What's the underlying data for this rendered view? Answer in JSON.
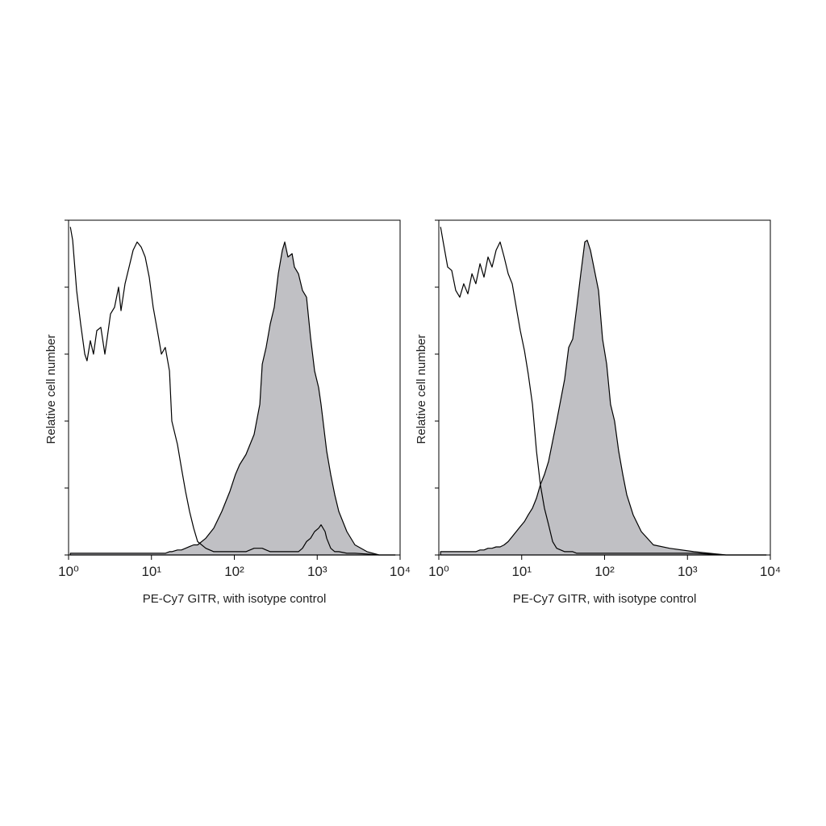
{
  "chart_data": [
    {
      "type": "area",
      "xscale": "log",
      "xlabel": "PE-Cy7 GITR, with isotype control",
      "ylabel": "Relative cell number",
      "xlim": [
        1,
        10000
      ],
      "ylim": [
        0,
        100
      ],
      "xticks": [
        {
          "value": 1,
          "label": "10⁰"
        },
        {
          "value": 10,
          "label": "10¹"
        },
        {
          "value": 100,
          "label": "10²"
        },
        {
          "value": 1000,
          "label": "10³"
        },
        {
          "value": 10000,
          "label": "10⁴"
        }
      ],
      "yticks": [
        0,
        20,
        40,
        60,
        80,
        100
      ],
      "x": [
        1.05,
        1.12,
        1.25,
        1.4,
        1.57,
        1.67,
        1.83,
        2,
        2.19,
        2.45,
        2.74,
        2.93,
        3.21,
        3.59,
        4.01,
        4.29,
        4.8,
        5.37,
        6.01,
        6.72,
        7.51,
        8.41,
        9.4,
        10.5,
        11.8,
        13.2,
        14.7,
        16.5,
        17.6,
        20.6,
        23,
        25.8,
        28.8,
        32.3,
        36.1,
        45.2,
        56.5,
        70.7,
        88.4,
        103,
        116,
        138,
        173,
        203,
        217,
        242,
        271,
        303,
        339,
        379,
        406,
        444,
        497,
        531,
        594,
        664,
        743,
        831,
        929,
        1040,
        1112,
        1245,
        1300,
        1456,
        1629,
        1820,
        2280,
        2851,
        3990,
        5585,
        8750
      ],
      "series": [
        {
          "color": "#000000",
          "fill": "#c0c0c4",
          "values": [
            0.5,
            0.5,
            0.5,
            0.5,
            0.5,
            0.5,
            0.5,
            0.5,
            0.5,
            0.5,
            0.5,
            0.5,
            0.5,
            0.5,
            0.5,
            0.5,
            0.5,
            0.5,
            0.5,
            0.5,
            0.5,
            0.5,
            0.5,
            0.5,
            0.5,
            0.5,
            0.5,
            1,
            1,
            1.5,
            1.5,
            2,
            2.5,
            3,
            3,
            5,
            8,
            13,
            19,
            24,
            27,
            30,
            36,
            45,
            57,
            62,
            69,
            74,
            84,
            91,
            93.5,
            89,
            90,
            86,
            84,
            79,
            77,
            65,
            55,
            50,
            45,
            35,
            31,
            24,
            18,
            13,
            7,
            3,
            1,
            0,
            0
          ]
        },
        {
          "color": "#000000",
          "fill": "none",
          "values": [
            98,
            94,
            79,
            69,
            60,
            58,
            64,
            60,
            67,
            68,
            60,
            65,
            72,
            74,
            80,
            73,
            81,
            86,
            91,
            93.5,
            92,
            89,
            83,
            74,
            67,
            60,
            62,
            55,
            40,
            33,
            26,
            19,
            13,
            8,
            4,
            2,
            1,
            1,
            1,
            1,
            1,
            1,
            2,
            2,
            2,
            1.5,
            1,
            1,
            1,
            1,
            1,
            1,
            1,
            1,
            1,
            2,
            4,
            5,
            7,
            8,
            9,
            7,
            5,
            2,
            1,
            1,
            0.5,
            0.5,
            0.3,
            0,
            0
          ]
        }
      ]
    },
    {
      "type": "area",
      "xscale": "log",
      "xlabel": "PE-Cy7 GITR, with isotype control",
      "ylabel": "Relative cell number",
      "xlim": [
        1,
        10000
      ],
      "ylim": [
        0,
        100
      ],
      "xticks": [
        {
          "value": 1,
          "label": "10⁰"
        },
        {
          "value": 10,
          "label": "10¹"
        },
        {
          "value": 100,
          "label": "10²"
        },
        {
          "value": 1000,
          "label": "10³"
        },
        {
          "value": 10000,
          "label": "10⁴"
        }
      ],
      "yticks": [
        0,
        20,
        40,
        60,
        80,
        100
      ],
      "x": [
        1.05,
        1.14,
        1.28,
        1.43,
        1.6,
        1.79,
        2,
        2.24,
        2.51,
        2.8,
        3.14,
        3.51,
        3.92,
        4.39,
        4.91,
        5.49,
        6.14,
        6.87,
        7.69,
        8.6,
        9.62,
        10.8,
        12,
        13.5,
        15.1,
        16.8,
        18.8,
        21.1,
        23.6,
        26.4,
        33,
        36.9,
        41.3,
        46.2,
        51.6,
        57.8,
        61.8,
        67.6,
        75.6,
        84.6,
        94.6,
        106,
        118,
        132,
        148,
        166,
        185,
        221,
        277,
        388,
        607,
        1190,
        2916,
        8940
      ],
      "series": [
        {
          "color": "#000000",
          "fill": "#c0c0c4",
          "values": [
            1,
            1,
            1,
            1,
            1,
            1,
            1,
            1,
            1,
            1,
            1.5,
            1.5,
            2,
            2,
            2.4,
            2.4,
            3,
            4,
            5.5,
            7,
            8.5,
            10,
            12,
            14,
            17,
            21,
            24,
            28,
            34,
            40,
            52.5,
            62,
            64.5,
            74,
            84,
            93.5,
            94,
            91,
            85,
            79,
            64.5,
            57,
            45,
            40,
            31,
            24,
            18,
            12,
            7,
            3,
            2,
            1,
            0,
            0
          ]
        },
        {
          "color": "#000000",
          "fill": "none",
          "values": [
            98,
            93,
            86,
            85,
            79,
            77,
            81,
            78,
            84,
            81,
            87,
            83,
            89,
            86,
            91,
            93.5,
            89,
            84,
            81,
            74,
            67,
            61,
            54,
            45,
            31,
            21,
            14,
            9,
            4,
            2,
            1,
            1,
            1,
            0.5,
            0.5,
            0.5,
            0.5,
            0.5,
            0.5,
            0.5,
            0.5,
            0.5,
            0.5,
            0.5,
            0.5,
            0.5,
            0.5,
            0.5,
            0.5,
            0.5,
            0.5,
            0.5,
            0,
            0
          ]
        }
      ]
    }
  ]
}
